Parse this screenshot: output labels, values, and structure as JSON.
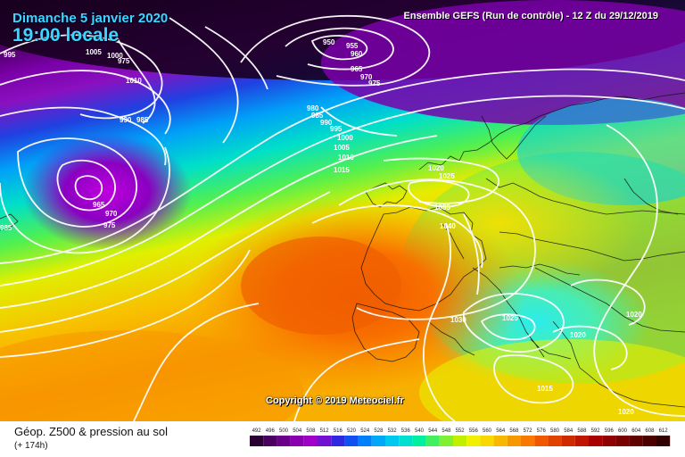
{
  "header": {
    "date": "Dimanche 5 janvier 2020",
    "time": "19:00 locale",
    "model": "Ensemble GEFS  (Run de contrôle)  -  12 Z du 29/12/2019"
  },
  "copyright": "Copyright © 2019 Meteociel.fr",
  "footer": {
    "title": "Géop. Z500 & pression au sol",
    "lead": "(+ 174h)"
  },
  "legend": {
    "values": [
      "492",
      "496",
      "500",
      "504",
      "508",
      "512",
      "516",
      "520",
      "524",
      "528",
      "532",
      "536",
      "540",
      "544",
      "548",
      "552",
      "556",
      "560",
      "564",
      "568",
      "572",
      "576",
      "580",
      "584",
      "588",
      "592",
      "596",
      "600",
      "604",
      "608",
      "612"
    ],
    "colors": [
      "#2a0030",
      "#4a0060",
      "#6a008a",
      "#8a00b0",
      "#a000c8",
      "#7010d0",
      "#3028e0",
      "#1050f0",
      "#0080f8",
      "#00a8f8",
      "#00c8f0",
      "#00e0d0",
      "#00f0a0",
      "#40f060",
      "#80f030",
      "#c0f000",
      "#f0f000",
      "#f8d800",
      "#f8b800",
      "#f89800",
      "#f87800",
      "#f05800",
      "#e04000",
      "#d02800",
      "#c01400",
      "#a80000",
      "#900000",
      "#780000",
      "#600000",
      "#480000",
      "#300000"
    ]
  },
  "isobars": [
    {
      "text": "950"
    },
    {
      "text": "955"
    },
    {
      "text": "960"
    },
    {
      "text": "965"
    },
    {
      "text": "970"
    },
    {
      "text": "975"
    },
    {
      "text": "980"
    },
    {
      "text": "985"
    },
    {
      "text": "990"
    },
    {
      "text": "995"
    },
    {
      "text": "1000"
    },
    {
      "text": "1005"
    },
    {
      "text": "1010"
    },
    {
      "text": "1015"
    },
    {
      "text": "995"
    },
    {
      "text": "1005"
    },
    {
      "text": "1000"
    },
    {
      "text": "975"
    },
    {
      "text": "1010"
    },
    {
      "text": "990"
    },
    {
      "text": "985"
    },
    {
      "text": "965"
    },
    {
      "text": "970"
    },
    {
      "text": "975"
    },
    {
      "text": "985"
    },
    {
      "text": "1020"
    },
    {
      "text": "1025"
    },
    {
      "text": "1035"
    },
    {
      "text": "1040"
    },
    {
      "text": "1030"
    },
    {
      "text": "1025"
    },
    {
      "text": "1020"
    },
    {
      "text": "1020"
    },
    {
      "text": "1015"
    },
    {
      "text": "1020"
    }
  ]
}
